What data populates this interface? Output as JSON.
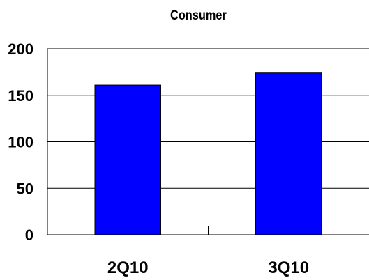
{
  "chart_data": {
    "type": "bar",
    "title": "Consumer",
    "categories": [
      "2Q10",
      "3Q10"
    ],
    "values": [
      161,
      174
    ],
    "ylim": [
      0,
      200
    ],
    "yticks": [
      0,
      50,
      100,
      150,
      200
    ],
    "grid": true,
    "legend": "none",
    "bar_color": "#0000FF",
    "xlabel": "",
    "ylabel": ""
  }
}
